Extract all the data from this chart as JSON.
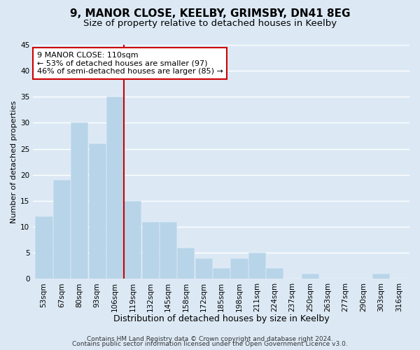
{
  "title1": "9, MANOR CLOSE, KEELBY, GRIMSBY, DN41 8EG",
  "title2": "Size of property relative to detached houses in Keelby",
  "xlabel": "Distribution of detached houses by size in Keelby",
  "ylabel": "Number of detached properties",
  "categories": [
    "53sqm",
    "67sqm",
    "80sqm",
    "93sqm",
    "106sqm",
    "119sqm",
    "132sqm",
    "145sqm",
    "158sqm",
    "172sqm",
    "185sqm",
    "198sqm",
    "211sqm",
    "224sqm",
    "237sqm",
    "250sqm",
    "263sqm",
    "277sqm",
    "290sqm",
    "303sqm",
    "316sqm"
  ],
  "values": [
    12,
    19,
    30,
    26,
    35,
    15,
    11,
    11,
    6,
    4,
    2,
    4,
    5,
    2,
    0,
    1,
    0,
    0,
    0,
    1,
    0
  ],
  "bar_color": "#b8d4e8",
  "bar_edge_color": "#c8dff0",
  "grid_color": "#ffffff",
  "bg_color": "#dce9f5",
  "vline_x_index": 4.5,
  "vline_color": "#cc0000",
  "annotation_text": "9 MANOR CLOSE: 110sqm\n← 53% of detached houses are smaller (97)\n46% of semi-detached houses are larger (85) →",
  "annotation_box_color": "#ffffff",
  "annotation_box_edge": "#cc0000",
  "ylim": [
    0,
    45
  ],
  "yticks": [
    0,
    5,
    10,
    15,
    20,
    25,
    30,
    35,
    40,
    45
  ],
  "footnote1": "Contains HM Land Registry data © Crown copyright and database right 2024.",
  "footnote2": "Contains public sector information licensed under the Open Government Licence v3.0.",
  "title_fontsize": 11,
  "subtitle_fontsize": 9.5,
  "xlabel_fontsize": 9,
  "ylabel_fontsize": 8,
  "tick_fontsize": 7.5,
  "annotation_fontsize": 8,
  "footnote_fontsize": 6.5
}
